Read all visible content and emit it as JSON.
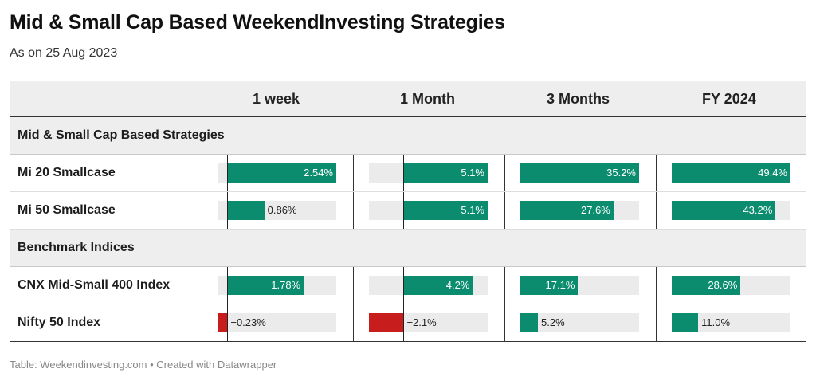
{
  "title": "Mid & Small Cap Based WeekendInvesting Strategies",
  "subtitle": "As on 25 Aug 2023",
  "footer": "Table: Weekendinvesting.com • Created with Datawrapper",
  "colors": {
    "positive": "#0c8c6e",
    "negative": "#c71e1d",
    "track": "#ebebeb"
  },
  "chart_data": {
    "type": "table",
    "columns": [
      "1 week",
      "1 Month",
      "3 Months",
      "FY 2024"
    ],
    "groups": [
      {
        "label": "Mid & Small Cap Based Strategies",
        "rows": [
          {
            "name": "Mi 20 Smallcase",
            "values": [
              2.54,
              5.1,
              35.2,
              49.4
            ],
            "labels": [
              "2.54%",
              "5.1%",
              "35.2%",
              "49.4%"
            ]
          },
          {
            "name": "Mi 50 Smallcase",
            "values": [
              0.86,
              5.1,
              27.6,
              43.2
            ],
            "labels": [
              "0.86%",
              "5.1%",
              "27.6%",
              "43.2%"
            ]
          }
        ]
      },
      {
        "label": "Benchmark Indices",
        "rows": [
          {
            "name": "CNX Mid-Small 400 Index",
            "values": [
              1.78,
              4.2,
              17.1,
              28.6
            ],
            "labels": [
              "1.78%",
              "4.2%",
              "17.1%",
              "28.6%"
            ]
          },
          {
            "name": "Nifty 50 Index",
            "values": [
              -0.23,
              -2.1,
              5.2,
              11.0
            ],
            "labels": [
              "−0.23%",
              "−2.1%",
              "5.2%",
              "11.0%"
            ]
          }
        ]
      }
    ],
    "column_ranges": [
      [
        -0.23,
        2.54
      ],
      [
        -2.1,
        5.1
      ],
      [
        0,
        35.2
      ],
      [
        0,
        49.4
      ]
    ]
  }
}
